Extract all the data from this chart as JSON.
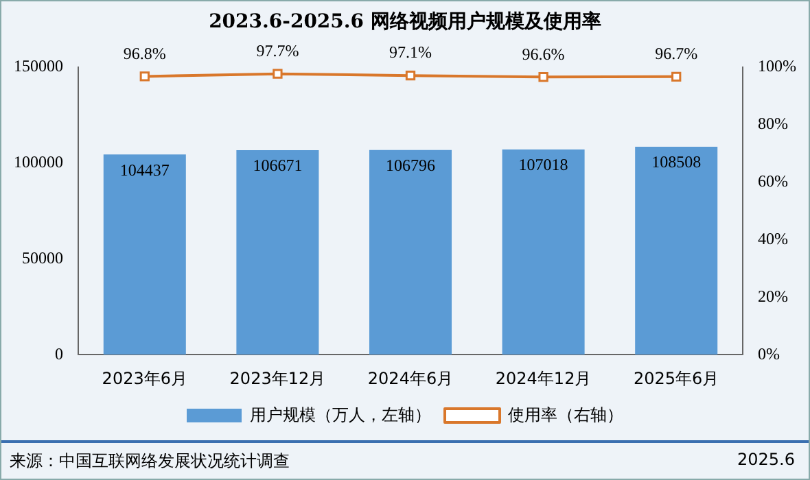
{
  "chart_data": {
    "type": "bar",
    "title": "2023.6-2025.6 网络视频用户规模及使用率",
    "categories": [
      "2023年6月",
      "2023年12月",
      "2024年6月",
      "2024年12月",
      "2025年6月"
    ],
    "series": [
      {
        "name": "用户规模（万人，左轴）",
        "color": "#5b9bd5",
        "values": [
          104437,
          106671,
          106796,
          107018,
          108508
        ],
        "value_labels": [
          "104437",
          "106671",
          "106796",
          "107018",
          "108508"
        ]
      },
      {
        "name": "使用率（右轴）",
        "type": "line",
        "axis": "y2",
        "color": "#d9772b",
        "marker": "square",
        "values": [
          96.8,
          97.7,
          97.1,
          96.6,
          96.7
        ],
        "value_labels": [
          "96.8%",
          "97.7%",
          "97.1%",
          "96.6%",
          "96.7%"
        ]
      }
    ],
    "ylim": [
      0,
      150000
    ],
    "yticks": [
      0,
      50000,
      100000,
      150000
    ],
    "y2lim": [
      0,
      100
    ],
    "y2ticks": [
      {
        "value": 0,
        "label": "0%"
      },
      {
        "value": 20,
        "label": "20%"
      },
      {
        "value": 40,
        "label": "40%"
      },
      {
        "value": 60,
        "label": "60%"
      },
      {
        "value": 80,
        "label": "80%"
      },
      {
        "value": 100,
        "label": "100%"
      }
    ],
    "grid": false,
    "legend": "bottom",
    "annotations": [
      "来源：中国互联网络发展状况统计调查",
      "2025.6"
    ]
  }
}
